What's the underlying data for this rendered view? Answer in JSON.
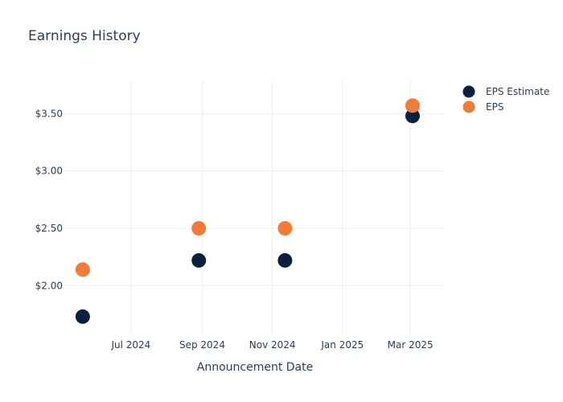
{
  "chart_data": {
    "type": "scatter",
    "title": "Earnings History",
    "xlabel": "Announcement Date",
    "ylabel": "",
    "x_ticks": [
      {
        "date": "2024-07-01",
        "label": "Jul 2024"
      },
      {
        "date": "2024-09-01",
        "label": "Sep 2024"
      },
      {
        "date": "2024-11-01",
        "label": "Nov 2024"
      },
      {
        "date": "2025-01-01",
        "label": "Jan 2025"
      },
      {
        "date": "2025-03-01",
        "label": "Mar 2025"
      }
    ],
    "y_ticks": [
      {
        "value": 2.0,
        "label": "$2.00"
      },
      {
        "value": 2.5,
        "label": "$2.50"
      },
      {
        "value": 3.0,
        "label": "$3.00"
      },
      {
        "value": 3.5,
        "label": "$3.50"
      }
    ],
    "xlim": [
      "2024-05-04",
      "2025-03-31"
    ],
    "ylim": [
      1.56,
      3.79
    ],
    "grid": true,
    "legend_position": "top-right",
    "series": [
      {
        "name": "EPS Estimate",
        "color": "#0b1f3f",
        "points": [
          {
            "x": "2024-05-20",
            "y": 1.73
          },
          {
            "x": "2024-08-29",
            "y": 2.22
          },
          {
            "x": "2024-11-12",
            "y": 2.22
          },
          {
            "x": "2025-03-03",
            "y": 3.48
          }
        ]
      },
      {
        "name": "EPS",
        "color": "#f47b35",
        "points": [
          {
            "x": "2024-05-20",
            "y": 2.14
          },
          {
            "x": "2024-08-29",
            "y": 2.5
          },
          {
            "x": "2024-11-12",
            "y": 2.5
          },
          {
            "x": "2025-03-03",
            "y": 3.57
          }
        ]
      }
    ]
  }
}
